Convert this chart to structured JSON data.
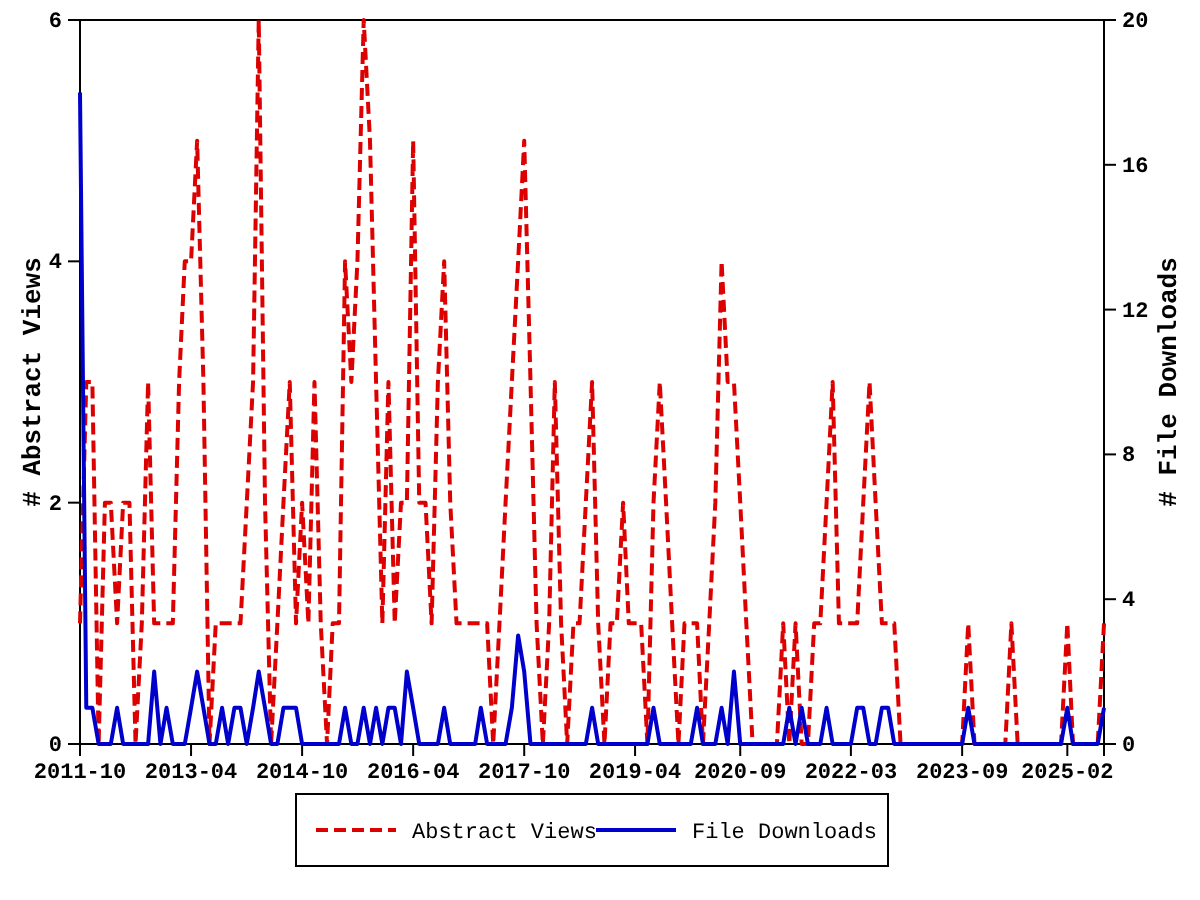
{
  "chart_data": {
    "type": "line",
    "xlabel": null,
    "ylabel": "# Abstract Views",
    "y2label": "# File Downloads",
    "x": [
      "2011-10",
      "2011-11",
      "2011-12",
      "2012-01",
      "2012-02",
      "2012-03",
      "2012-04",
      "2012-05",
      "2012-06",
      "2012-07",
      "2012-08",
      "2012-09",
      "2012-10",
      "2012-11",
      "2012-12",
      "2013-01",
      "2013-02",
      "2013-03",
      "2013-04",
      "2013-05",
      "2013-06",
      "2013-07",
      "2013-08",
      "2013-09",
      "2013-10",
      "2013-11",
      "2013-12",
      "2014-01",
      "2014-02",
      "2014-03",
      "2014-04",
      "2014-05",
      "2014-06",
      "2014-07",
      "2014-08",
      "2014-09",
      "2014-10",
      "2014-11",
      "2014-12",
      "2015-01",
      "2015-02",
      "2015-03",
      "2015-04",
      "2015-05",
      "2015-06",
      "2015-07",
      "2015-08",
      "2015-09",
      "2015-10",
      "2015-11",
      "2015-12",
      "2016-01",
      "2016-02",
      "2016-03",
      "2016-04",
      "2016-05",
      "2016-06",
      "2016-07",
      "2016-08",
      "2016-09",
      "2016-10",
      "2016-11",
      "2016-12",
      "2017-01",
      "2017-02",
      "2017-03",
      "2017-04",
      "2017-05",
      "2017-06",
      "2017-07",
      "2017-08",
      "2017-09",
      "2017-10",
      "2017-11",
      "2017-12",
      "2018-01",
      "2018-02",
      "2018-03",
      "2018-04",
      "2018-05",
      "2018-06",
      "2018-07",
      "2018-08",
      "2018-09",
      "2018-10",
      "2018-11",
      "2018-12",
      "2019-01",
      "2019-02",
      "2019-03",
      "2019-04",
      "2019-05",
      "2019-06",
      "2019-07",
      "2019-08",
      "2019-09",
      "2019-10",
      "2019-11",
      "2019-12",
      "2020-01",
      "2020-02",
      "2020-03",
      "2020-04",
      "2020-05",
      "2020-06",
      "2020-07",
      "2020-08",
      "2020-09",
      "2020-10",
      "2020-11",
      "2020-12",
      "2021-01",
      "2021-02",
      "2021-03",
      "2021-04",
      "2021-05",
      "2021-06",
      "2021-07",
      "2021-08",
      "2021-09",
      "2021-10",
      "2021-11",
      "2021-12",
      "2022-01",
      "2022-02",
      "2022-03",
      "2022-04",
      "2022-05",
      "2022-06",
      "2022-07",
      "2022-08",
      "2022-09",
      "2022-10",
      "2022-11",
      "2022-12",
      "2023-01",
      "2023-02",
      "2023-03",
      "2023-04",
      "2023-05",
      "2023-06",
      "2023-07",
      "2023-08",
      "2023-09",
      "2023-10",
      "2023-11",
      "2023-12",
      "2024-01",
      "2024-02",
      "2024-03",
      "2024-04",
      "2024-05",
      "2024-06",
      "2024-07",
      "2024-08",
      "2024-09",
      "2024-10",
      "2024-11",
      "2024-12",
      "2025-01",
      "2025-02",
      "2025-03",
      "2025-04",
      "2025-05",
      "2025-06",
      "2025-07",
      "2025-08"
    ],
    "series": [
      {
        "name": "Abstract Views",
        "color": "#dd0000",
        "line_style": "dashed",
        "values": [
          1,
          3,
          3,
          0,
          2,
          2,
          1,
          2,
          2,
          0,
          1,
          3,
          1,
          1,
          1,
          1,
          3,
          4,
          4,
          5,
          3,
          0,
          1,
          1,
          1,
          1,
          1,
          2,
          3,
          6,
          2,
          0,
          1,
          2,
          3,
          1,
          2,
          1,
          3,
          1,
          0,
          1,
          1,
          4,
          3,
          4,
          6,
          5,
          3,
          1,
          3,
          1,
          2,
          2,
          5,
          2,
          2,
          1,
          3,
          4,
          2,
          1,
          1,
          1,
          1,
          1,
          1,
          0,
          1,
          2,
          3,
          4,
          5,
          3,
          1,
          0,
          1,
          3,
          1,
          0,
          1,
          1,
          2,
          3,
          1,
          0,
          1,
          1,
          2,
          1,
          1,
          1,
          0,
          2,
          3,
          2,
          1,
          0,
          1,
          1,
          1,
          0,
          1,
          2,
          4,
          3,
          3,
          2,
          1,
          0,
          0,
          0,
          0,
          0,
          1,
          0,
          1,
          0,
          0,
          1,
          1,
          2,
          3,
          1,
          1,
          1,
          1,
          2,
          3,
          2,
          1,
          1,
          1,
          0,
          0,
          0,
          0,
          0,
          0,
          0,
          0,
          0,
          0,
          0,
          1,
          0,
          0,
          0,
          0,
          0,
          0,
          1,
          0,
          0,
          0,
          0,
          0,
          0,
          0,
          0,
          1,
          0,
          0,
          0,
          0,
          0,
          1
        ]
      },
      {
        "name": "File Downloads",
        "color": "#0000cc",
        "line_style": "solid",
        "axis": "y2",
        "values": [
          18,
          1,
          1,
          0,
          0,
          0,
          1,
          0,
          0,
          0,
          0,
          0,
          2,
          0,
          1,
          0,
          0,
          0,
          1,
          2,
          1,
          0,
          0,
          1,
          0,
          1,
          1,
          0,
          1,
          2,
          1,
          0,
          0,
          1,
          1,
          1,
          0,
          0,
          0,
          0,
          0,
          0,
          0,
          1,
          0,
          0,
          1,
          0,
          1,
          0,
          1,
          1,
          0,
          2,
          1,
          0,
          0,
          0,
          0,
          1,
          0,
          0,
          0,
          0,
          0,
          1,
          0,
          0,
          0,
          0,
          1,
          3,
          2,
          0,
          0,
          0,
          0,
          0,
          0,
          0,
          0,
          0,
          0,
          1,
          0,
          0,
          0,
          0,
          0,
          0,
          0,
          0,
          0,
          1,
          0,
          0,
          0,
          0,
          0,
          0,
          1,
          0,
          0,
          0,
          1,
          0,
          2,
          0,
          0,
          0,
          0,
          0,
          0,
          0,
          0,
          1,
          0,
          1,
          0,
          0,
          0,
          1,
          0,
          0,
          0,
          0,
          1,
          1,
          0,
          0,
          1,
          1,
          0,
          0,
          0,
          0,
          0,
          0,
          0,
          0,
          0,
          0,
          0,
          0,
          1,
          0,
          0,
          0,
          0,
          0,
          0,
          0,
          0,
          0,
          0,
          0,
          0,
          0,
          0,
          0,
          1,
          0,
          0,
          0,
          0,
          0,
          1
        ]
      }
    ],
    "xlim": [
      "2011-10",
      "2025-08"
    ],
    "xticks": [
      "2011-10",
      "2013-04",
      "2014-10",
      "2016-04",
      "2017-10",
      "2019-04",
      "2020-09",
      "2022-03",
      "2023-09",
      "2025-02"
    ],
    "ylim": [
      0,
      6
    ],
    "yticks": [
      0,
      2,
      4,
      6
    ],
    "y2lim": [
      0,
      20
    ],
    "y2ticks": [
      0,
      4,
      8,
      12,
      16,
      20
    ],
    "grid": false,
    "legend": "bottom"
  }
}
